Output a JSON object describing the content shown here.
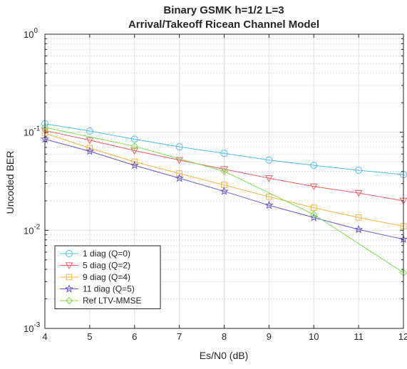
{
  "chart_data": {
    "type": "line",
    "title": "Binary GSMK h=1/2 L=3",
    "subtitle": "Arrival/Takeoff Ricean Channel Model",
    "xlabel": "Es/N0 (dB)",
    "ylabel": "Uncoded BER",
    "xlim": [
      4,
      12
    ],
    "ylim": [
      0.001,
      1
    ],
    "yscale": "log",
    "grid": true,
    "minor_grid": true,
    "legend_position": "bottom-left",
    "x": [
      4,
      5,
      6,
      7,
      8,
      9,
      10,
      11,
      12
    ],
    "x_tick_labels": [
      "4",
      "5",
      "6",
      "7",
      "8",
      "9",
      "10",
      "11",
      "12"
    ],
    "y_tick_labels": [
      {
        "base": "10",
        "exp": "0"
      },
      {
        "base": "10",
        "exp": "-1"
      },
      {
        "base": "10",
        "exp": "-2"
      },
      {
        "base": "10",
        "exp": "-3"
      }
    ],
    "series": [
      {
        "name": "1 diag (Q=0)",
        "color": "#4dbeee",
        "marker": "circle",
        "values": [
          0.122,
          0.103,
          0.085,
          0.071,
          0.061,
          0.052,
          0.046,
          0.041,
          0.037
        ]
      },
      {
        "name": "5 diag (Q=2)",
        "color": "#ec5c64",
        "marker": "triangle-down",
        "values": [
          0.104,
          0.083,
          0.065,
          0.052,
          0.042,
          0.034,
          0.028,
          0.024,
          0.02
        ]
      },
      {
        "name": "9 diag (Q=4)",
        "color": "#f5b13e",
        "marker": "square",
        "values": [
          0.098,
          0.069,
          0.05,
          0.038,
          0.029,
          0.022,
          0.017,
          0.0135,
          0.011
        ]
      },
      {
        "name": "11 diag (Q=5)",
        "color": "#6a56d6",
        "marker": "star",
        "values": [
          0.085,
          0.064,
          0.046,
          0.034,
          0.025,
          0.018,
          0.0135,
          0.0102,
          0.0081
        ]
      },
      {
        "name": "Ref LTV-MMSE",
        "color": "#7fde4a",
        "marker": "diamond",
        "values": [
          0.112,
          null,
          0.072,
          null,
          0.04,
          null,
          0.0145,
          null,
          0.0037
        ]
      }
    ]
  }
}
